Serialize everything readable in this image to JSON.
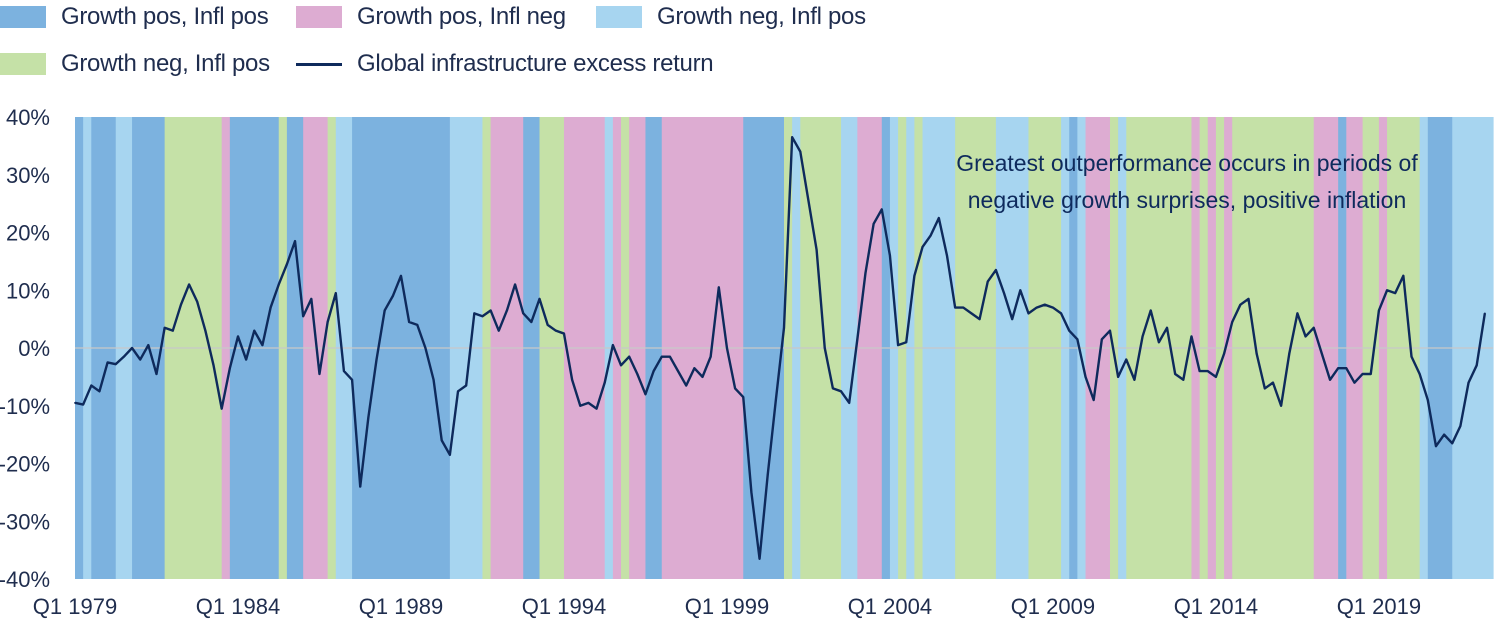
{
  "chart_data": {
    "type": "line",
    "title": "",
    "xlabel": "",
    "ylabel": "",
    "ylim": [
      -40,
      40
    ],
    "y_ticks": [
      "40%",
      "30%",
      "20%",
      "10%",
      "0%",
      "-10%",
      "-20%",
      "-30%",
      "-40%"
    ],
    "x_tick_labels": [
      "Q1 1979",
      "Q1 1984",
      "Q1 1989",
      "Q1 1994",
      "Q1 1999",
      "Q1 2004",
      "Q1 2009",
      "Q1 2014",
      "Q1 2019"
    ],
    "legend_position": "top",
    "annotation": [
      "Greatest outperformance occurs in periods of",
      "negative growth surprises, positive inflation"
    ],
    "regime_legend": [
      {
        "key": "gp_ip",
        "name": "Growth pos, Infl pos",
        "color": "#7cb2df"
      },
      {
        "key": "gp_in",
        "name": "Growth pos, Infl neg",
        "color": "#ddacd2"
      },
      {
        "key": "gn_ip_blue",
        "name": "Growth neg, Infl pos",
        "color": "#a7d5f0"
      },
      {
        "key": "gn_ip_green",
        "name": "Growth neg, Infl pos",
        "color": "#c5e1a7"
      }
    ],
    "regimes": [
      {
        "start": 1979.0,
        "end": 1979.25,
        "key": "gp_ip"
      },
      {
        "start": 1979.25,
        "end": 1979.5,
        "key": "gn_ip_blue"
      },
      {
        "start": 1979.5,
        "end": 1980.25,
        "key": "gp_ip"
      },
      {
        "start": 1980.25,
        "end": 1980.75,
        "key": "gn_ip_blue"
      },
      {
        "start": 1980.75,
        "end": 1981.75,
        "key": "gp_ip"
      },
      {
        "start": 1981.75,
        "end": 1983.5,
        "key": "gn_ip_green"
      },
      {
        "start": 1983.5,
        "end": 1983.75,
        "key": "gp_in"
      },
      {
        "start": 1983.75,
        "end": 1985.25,
        "key": "gp_ip"
      },
      {
        "start": 1985.25,
        "end": 1985.5,
        "key": "gn_ip_green"
      },
      {
        "start": 1985.5,
        "end": 1986.0,
        "key": "gp_ip"
      },
      {
        "start": 1986.0,
        "end": 1986.75,
        "key": "gp_in"
      },
      {
        "start": 1986.75,
        "end": 1987.0,
        "key": "gn_ip_green"
      },
      {
        "start": 1987.0,
        "end": 1987.5,
        "key": "gn_ip_blue"
      },
      {
        "start": 1987.5,
        "end": 1990.5,
        "key": "gp_ip"
      },
      {
        "start": 1990.5,
        "end": 1991.5,
        "key": "gn_ip_blue"
      },
      {
        "start": 1991.5,
        "end": 1991.75,
        "key": "gn_ip_green"
      },
      {
        "start": 1991.75,
        "end": 1992.75,
        "key": "gp_in"
      },
      {
        "start": 1992.75,
        "end": 1993.25,
        "key": "gp_ip"
      },
      {
        "start": 1993.25,
        "end": 1994.0,
        "key": "gn_ip_green"
      },
      {
        "start": 1994.0,
        "end": 1995.25,
        "key": "gp_in"
      },
      {
        "start": 1995.25,
        "end": 1995.5,
        "key": "gn_ip_blue"
      },
      {
        "start": 1995.5,
        "end": 1995.75,
        "key": "gp_in"
      },
      {
        "start": 1995.75,
        "end": 1996.0,
        "key": "gn_ip_green"
      },
      {
        "start": 1996.0,
        "end": 1996.5,
        "key": "gp_in"
      },
      {
        "start": 1996.5,
        "end": 1997.0,
        "key": "gp_ip"
      },
      {
        "start": 1997.0,
        "end": 1999.5,
        "key": "gp_in"
      },
      {
        "start": 1999.5,
        "end": 2000.75,
        "key": "gp_ip"
      },
      {
        "start": 2000.75,
        "end": 2001.0,
        "key": "gn_ip_green"
      },
      {
        "start": 2001.0,
        "end": 2001.25,
        "key": "gn_ip_blue"
      },
      {
        "start": 2001.25,
        "end": 2002.5,
        "key": "gn_ip_green"
      },
      {
        "start": 2002.5,
        "end": 2003.0,
        "key": "gn_ip_blue"
      },
      {
        "start": 2003.0,
        "end": 2003.75,
        "key": "gp_in"
      },
      {
        "start": 2003.75,
        "end": 2004.0,
        "key": "gp_ip"
      },
      {
        "start": 2004.0,
        "end": 2004.25,
        "key": "gn_ip_blue"
      },
      {
        "start": 2004.25,
        "end": 2004.5,
        "key": "gn_ip_green"
      },
      {
        "start": 2004.5,
        "end": 2004.75,
        "key": "gn_ip_blue"
      },
      {
        "start": 2004.75,
        "end": 2005.0,
        "key": "gn_ip_green"
      },
      {
        "start": 2005.0,
        "end": 2006.0,
        "key": "gn_ip_blue"
      },
      {
        "start": 2006.0,
        "end": 2007.25,
        "key": "gn_ip_green"
      },
      {
        "start": 2007.25,
        "end": 2008.25,
        "key": "gn_ip_blue"
      },
      {
        "start": 2008.25,
        "end": 2009.25,
        "key": "gn_ip_green"
      },
      {
        "start": 2009.25,
        "end": 2009.5,
        "key": "gn_ip_blue"
      },
      {
        "start": 2009.5,
        "end": 2009.75,
        "key": "gp_ip"
      },
      {
        "start": 2009.75,
        "end": 2010.0,
        "key": "gn_ip_blue"
      },
      {
        "start": 2010.0,
        "end": 2010.75,
        "key": "gp_in"
      },
      {
        "start": 2010.75,
        "end": 2011.0,
        "key": "gn_ip_green"
      },
      {
        "start": 2011.0,
        "end": 2011.25,
        "key": "gn_ip_blue"
      },
      {
        "start": 2011.25,
        "end": 2013.25,
        "key": "gn_ip_green"
      },
      {
        "start": 2013.25,
        "end": 2013.5,
        "key": "gp_in"
      },
      {
        "start": 2013.5,
        "end": 2013.75,
        "key": "gn_ip_green"
      },
      {
        "start": 2013.75,
        "end": 2014.0,
        "key": "gp_in"
      },
      {
        "start": 2014.0,
        "end": 2014.25,
        "key": "gn_ip_green"
      },
      {
        "start": 2014.25,
        "end": 2014.5,
        "key": "gp_in"
      },
      {
        "start": 2014.5,
        "end": 2017.0,
        "key": "gn_ip_green"
      },
      {
        "start": 2017.0,
        "end": 2017.75,
        "key": "gp_in"
      },
      {
        "start": 2017.75,
        "end": 2018.0,
        "key": "gp_ip"
      },
      {
        "start": 2018.0,
        "end": 2018.5,
        "key": "gp_in"
      },
      {
        "start": 2018.5,
        "end": 2019.0,
        "key": "gn_ip_green"
      },
      {
        "start": 2019.0,
        "end": 2019.25,
        "key": "gp_in"
      },
      {
        "start": 2019.25,
        "end": 2020.25,
        "key": "gn_ip_green"
      },
      {
        "start": 2020.25,
        "end": 2020.5,
        "key": "gn_ip_blue"
      },
      {
        "start": 2020.5,
        "end": 2021.25,
        "key": "gp_ip"
      },
      {
        "start": 2021.25,
        "end": 2022.75,
        "key": "gn_ip_blue"
      }
    ],
    "series": [
      {
        "name": "Global infrastructure excess return",
        "color": "#0e2a5c",
        "points": [
          [
            1979.0,
            -9.5
          ],
          [
            1979.25,
            -9.8
          ],
          [
            1979.5,
            -6.5
          ],
          [
            1979.75,
            -7.5
          ],
          [
            1980.0,
            -2.5
          ],
          [
            1980.25,
            -2.8
          ],
          [
            1980.5,
            -1.5
          ],
          [
            1980.75,
            0.0
          ],
          [
            1981.0,
            -2.0
          ],
          [
            1981.25,
            0.5
          ],
          [
            1981.5,
            -4.5
          ],
          [
            1981.75,
            3.5
          ],
          [
            1982.0,
            3.0
          ],
          [
            1982.25,
            7.5
          ],
          [
            1982.5,
            11.0
          ],
          [
            1982.75,
            8.0
          ],
          [
            1983.0,
            3.0
          ],
          [
            1983.25,
            -3.0
          ],
          [
            1983.5,
            -10.5
          ],
          [
            1983.75,
            -3.5
          ],
          [
            1984.0,
            2.0
          ],
          [
            1984.25,
            -2.0
          ],
          [
            1984.5,
            3.0
          ],
          [
            1984.75,
            0.5
          ],
          [
            1985.0,
            7.0
          ],
          [
            1985.25,
            11.0
          ],
          [
            1985.5,
            14.5
          ],
          [
            1985.75,
            18.5
          ],
          [
            1986.0,
            5.5
          ],
          [
            1986.25,
            8.5
          ],
          [
            1986.5,
            -4.5
          ],
          [
            1986.75,
            4.5
          ],
          [
            1987.0,
            9.5
          ],
          [
            1987.25,
            -4.0
          ],
          [
            1987.5,
            -5.5
          ],
          [
            1987.75,
            -24.0
          ],
          [
            1988.0,
            -12.0
          ],
          [
            1988.25,
            -2.0
          ],
          [
            1988.5,
            6.5
          ],
          [
            1988.75,
            9.0
          ],
          [
            1989.0,
            12.5
          ],
          [
            1989.25,
            4.5
          ],
          [
            1989.5,
            4.0
          ],
          [
            1989.75,
            0.0
          ],
          [
            1990.0,
            -5.5
          ],
          [
            1990.25,
            -16.0
          ],
          [
            1990.5,
            -18.5
          ],
          [
            1990.75,
            -7.5
          ],
          [
            1991.0,
            -6.5
          ],
          [
            1991.25,
            6.0
          ],
          [
            1991.5,
            5.5
          ],
          [
            1991.75,
            6.5
          ],
          [
            1992.0,
            3.0
          ],
          [
            1992.25,
            6.5
          ],
          [
            1992.5,
            11.0
          ],
          [
            1992.75,
            6.0
          ],
          [
            1993.0,
            4.5
          ],
          [
            1993.25,
            8.5
          ],
          [
            1993.5,
            4.0
          ],
          [
            1993.75,
            3.0
          ],
          [
            1994.0,
            2.5
          ],
          [
            1994.25,
            -5.5
          ],
          [
            1994.5,
            -10.0
          ],
          [
            1994.75,
            -9.5
          ],
          [
            1995.0,
            -10.5
          ],
          [
            1995.25,
            -6.0
          ],
          [
            1995.5,
            0.5
          ],
          [
            1995.75,
            -3.0
          ],
          [
            1996.0,
            -1.5
          ],
          [
            1996.25,
            -4.5
          ],
          [
            1996.5,
            -8.0
          ],
          [
            1996.75,
            -4.0
          ],
          [
            1997.0,
            -1.5
          ],
          [
            1997.25,
            -1.5
          ],
          [
            1997.5,
            -4.0
          ],
          [
            1997.75,
            -6.5
          ],
          [
            1998.0,
            -3.5
          ],
          [
            1998.25,
            -5.0
          ],
          [
            1998.5,
            -1.5
          ],
          [
            1998.75,
            10.5
          ],
          [
            1999.0,
            0.0
          ],
          [
            1999.25,
            -7.0
          ],
          [
            1999.5,
            -8.5
          ],
          [
            1999.75,
            -25.0
          ],
          [
            2000.0,
            -36.5
          ],
          [
            2000.25,
            -22.0
          ],
          [
            2000.5,
            -9.0
          ],
          [
            2000.75,
            3.5
          ],
          [
            2001.0,
            36.5
          ],
          [
            2001.25,
            34.0
          ],
          [
            2001.5,
            25.5
          ],
          [
            2001.75,
            17.0
          ],
          [
            2002.0,
            0.0
          ],
          [
            2002.25,
            -7.0
          ],
          [
            2002.5,
            -7.5
          ],
          [
            2002.75,
            -9.5
          ],
          [
            2003.0,
            1.5
          ],
          [
            2003.25,
            13.0
          ],
          [
            2003.5,
            21.5
          ],
          [
            2003.75,
            24.0
          ],
          [
            2004.0,
            16.0
          ],
          [
            2004.25,
            0.5
          ],
          [
            2004.5,
            1.0
          ],
          [
            2004.75,
            12.5
          ],
          [
            2005.0,
            17.5
          ],
          [
            2005.25,
            19.5
          ],
          [
            2005.5,
            22.5
          ],
          [
            2005.75,
            16.0
          ],
          [
            2006.0,
            7.0
          ],
          [
            2006.25,
            7.0
          ],
          [
            2006.5,
            6.0
          ],
          [
            2006.75,
            5.0
          ],
          [
            2007.0,
            11.5
          ],
          [
            2007.25,
            13.5
          ],
          [
            2007.5,
            9.5
          ],
          [
            2007.75,
            5.0
          ],
          [
            2008.0,
            10.0
          ],
          [
            2008.25,
            6.0
          ],
          [
            2008.5,
            7.0
          ],
          [
            2008.75,
            7.5
          ],
          [
            2009.0,
            7.0
          ],
          [
            2009.25,
            6.0
          ],
          [
            2009.5,
            3.0
          ],
          [
            2009.75,
            1.5
          ],
          [
            2010.0,
            -5.0
          ],
          [
            2010.25,
            -9.0
          ],
          [
            2010.5,
            1.5
          ],
          [
            2010.75,
            3.0
          ],
          [
            2011.0,
            -5.0
          ],
          [
            2011.25,
            -2.0
          ],
          [
            2011.5,
            -5.5
          ],
          [
            2011.75,
            2.0
          ],
          [
            2012.0,
            6.5
          ],
          [
            2012.25,
            1.0
          ],
          [
            2012.5,
            3.5
          ],
          [
            2012.75,
            -4.5
          ],
          [
            2013.0,
            -5.5
          ],
          [
            2013.25,
            2.0
          ],
          [
            2013.5,
            -4.0
          ],
          [
            2013.75,
            -4.0
          ],
          [
            2014.0,
            -5.0
          ],
          [
            2014.25,
            -1.0
          ],
          [
            2014.5,
            4.5
          ],
          [
            2014.75,
            7.5
          ],
          [
            2015.0,
            8.5
          ],
          [
            2015.25,
            -1.0
          ],
          [
            2015.5,
            -7.0
          ],
          [
            2015.75,
            -6.0
          ],
          [
            2016.0,
            -10.0
          ],
          [
            2016.25,
            -1.0
          ],
          [
            2016.5,
            6.0
          ],
          [
            2016.75,
            2.0
          ],
          [
            2017.0,
            3.5
          ],
          [
            2017.25,
            -1.0
          ],
          [
            2017.5,
            -5.5
          ],
          [
            2017.75,
            -3.5
          ],
          [
            2018.0,
            -3.5
          ],
          [
            2018.25,
            -6.0
          ],
          [
            2018.5,
            -4.5
          ],
          [
            2018.75,
            -4.5
          ],
          [
            2019.0,
            6.5
          ],
          [
            2019.25,
            10.0
          ],
          [
            2019.5,
            9.5
          ],
          [
            2019.75,
            12.5
          ],
          [
            2020.0,
            -1.5
          ],
          [
            2020.25,
            -4.5
          ],
          [
            2020.5,
            -9.0
          ],
          [
            2020.75,
            -17.0
          ],
          [
            2021.0,
            -15.0
          ],
          [
            2021.25,
            -16.5
          ],
          [
            2021.5,
            -13.5
          ],
          [
            2021.75,
            -6.0
          ],
          [
            2022.0,
            -3.0
          ],
          [
            2022.25,
            6.0
          ]
        ]
      }
    ]
  }
}
